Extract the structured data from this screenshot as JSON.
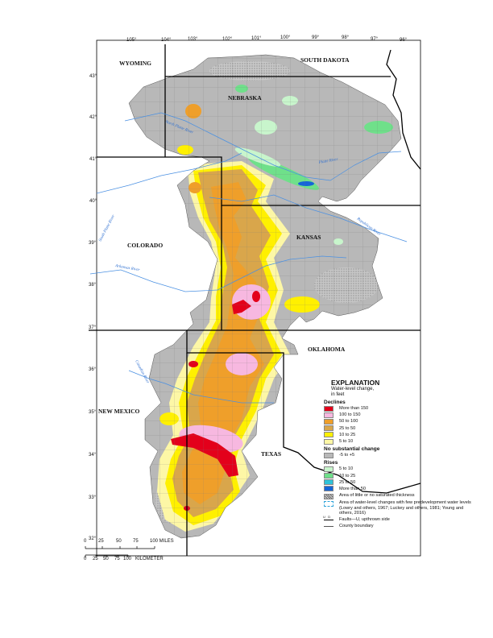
{
  "states": {
    "wyoming": "WYOMING",
    "south_dakota": "SOUTH DAKOTA",
    "nebraska": "NEBRASKA",
    "colorado": "COLORADO",
    "kansas": "KANSAS",
    "oklahoma": "OKLAHOMA",
    "new_mexico": "NEW MEXICO",
    "texas": "TEXAS"
  },
  "longitudes": [
    "105°",
    "104°",
    "103°",
    "102°",
    "101°",
    "100°",
    "99°",
    "98°",
    "97°",
    "96°"
  ],
  "latitudes": [
    "43°",
    "42°",
    "41°",
    "40°",
    "39°",
    "38°",
    "37°",
    "36°",
    "35°",
    "34°",
    "33°",
    "32°"
  ],
  "rivers": {
    "north_platte": "North Platte River",
    "platte": "Platte River",
    "south_platte": "South Platte River",
    "republican": "Republican River",
    "arkansas": "Arkansas River",
    "canadian": "Canadian River"
  },
  "legend": {
    "title": "EXPLANATION",
    "subtitle_1": "Water-level change,",
    "subtitle_2": "in feet",
    "declines_heading": "Declines",
    "declines": [
      {
        "label": "More than 150",
        "color": "#e3001b"
      },
      {
        "label": "100 to 150",
        "color": "#f7b8e0"
      },
      {
        "label": "50 to 100",
        "color": "#ef9f2a"
      },
      {
        "label": "25 to 50",
        "color": "#d9a64b"
      },
      {
        "label": "10 to 25",
        "color": "#fff000"
      },
      {
        "label": "5 to 10",
        "color": "#fdf7a6"
      }
    ],
    "nochange_heading": "No substantial change",
    "nochange": {
      "label": "-5 to +5",
      "color": "#b8b8b8"
    },
    "rises_heading": "Rises",
    "rises": [
      {
        "label": "5 to 10",
        "color": "#c8f5cc"
      },
      {
        "label": "10 to 25",
        "color": "#6fe08a"
      },
      {
        "label": "25 to 50",
        "color": "#2fc3d9"
      },
      {
        "label": "More than 50",
        "color": "#1565d8"
      }
    ],
    "little_saturated": "Area of little or no saturated thickness",
    "few_wells": "Area of water-level changes with few predevelopment water levels (Lowry and others, 1967; Luckey and others, 1981; Young and others, 2016)",
    "faults": "Faults—U, upthrown side",
    "fault_marks": "U   D",
    "county_boundary": "County boundary"
  },
  "scale": {
    "miles_ticks": [
      "0",
      "25",
      "50",
      "75",
      "100 MILES"
    ],
    "km_ticks": [
      "0",
      "25",
      "50",
      "75",
      "100",
      "KILOMETER"
    ]
  }
}
